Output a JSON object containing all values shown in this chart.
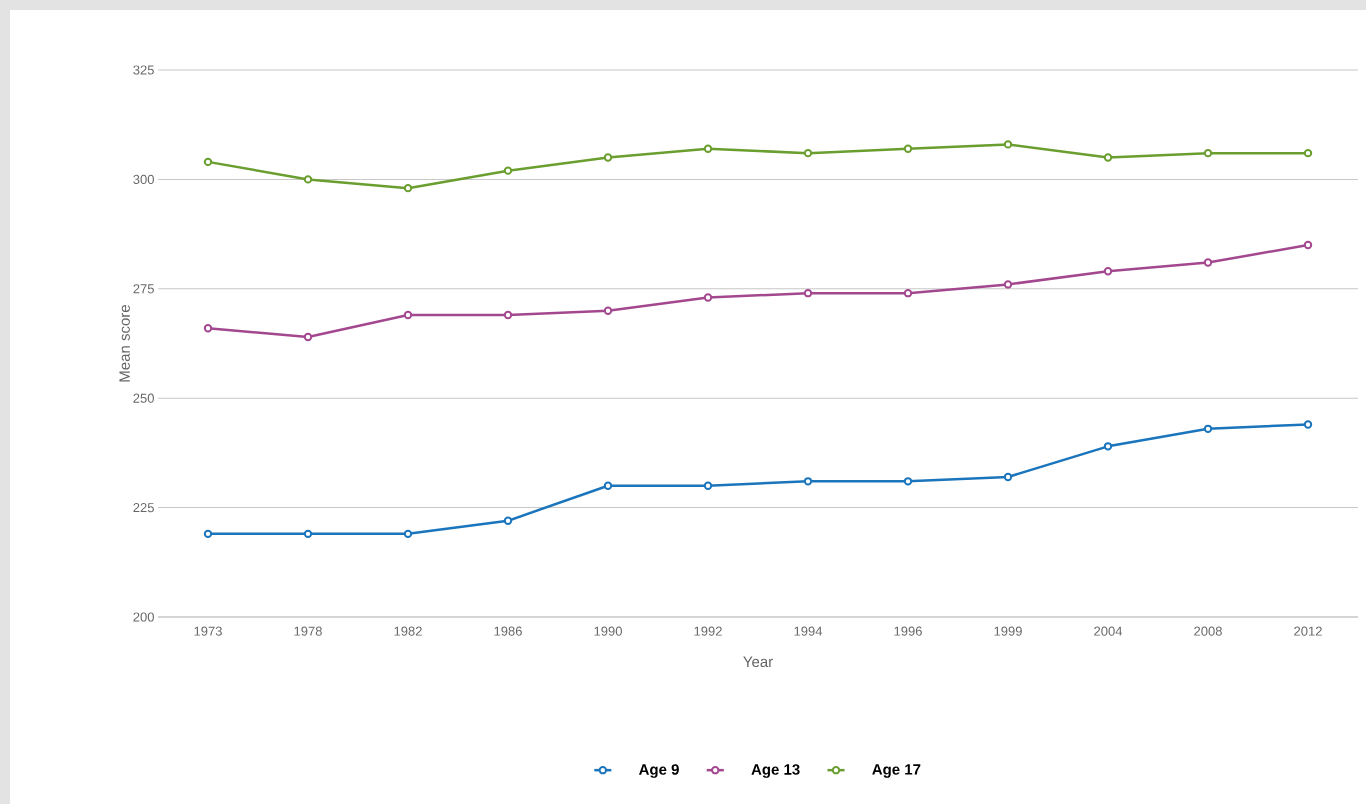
{
  "chart_data": {
    "type": "line",
    "xlabel": "Year",
    "ylabel": "Mean score",
    "categories": [
      "1973",
      "1978",
      "1982",
      "1986",
      "1990",
      "1992",
      "1994",
      "1996",
      "1999",
      "2004",
      "2008",
      "2012"
    ],
    "series": [
      {
        "name": "Age 9",
        "color": "#1a75bc",
        "values": [
          219,
          219,
          219,
          222,
          230,
          230,
          231,
          231,
          232,
          239,
          243,
          244
        ]
      },
      {
        "name": "Age 13",
        "color": "#a3478f",
        "values": [
          266,
          264,
          269,
          269,
          270,
          273,
          274,
          274,
          276,
          279,
          281,
          285
        ]
      },
      {
        "name": "Age 17",
        "color": "#6a9e2f",
        "values": [
          304,
          300,
          298,
          302,
          305,
          307,
          306,
          307,
          308,
          305,
          306,
          306
        ]
      }
    ],
    "ylim": [
      200,
      325
    ],
    "yticks": [
      200,
      225,
      250,
      275,
      300,
      325
    ],
    "grid": "y",
    "legend": "bottom",
    "marker": "circle",
    "line_style": "solid"
  }
}
